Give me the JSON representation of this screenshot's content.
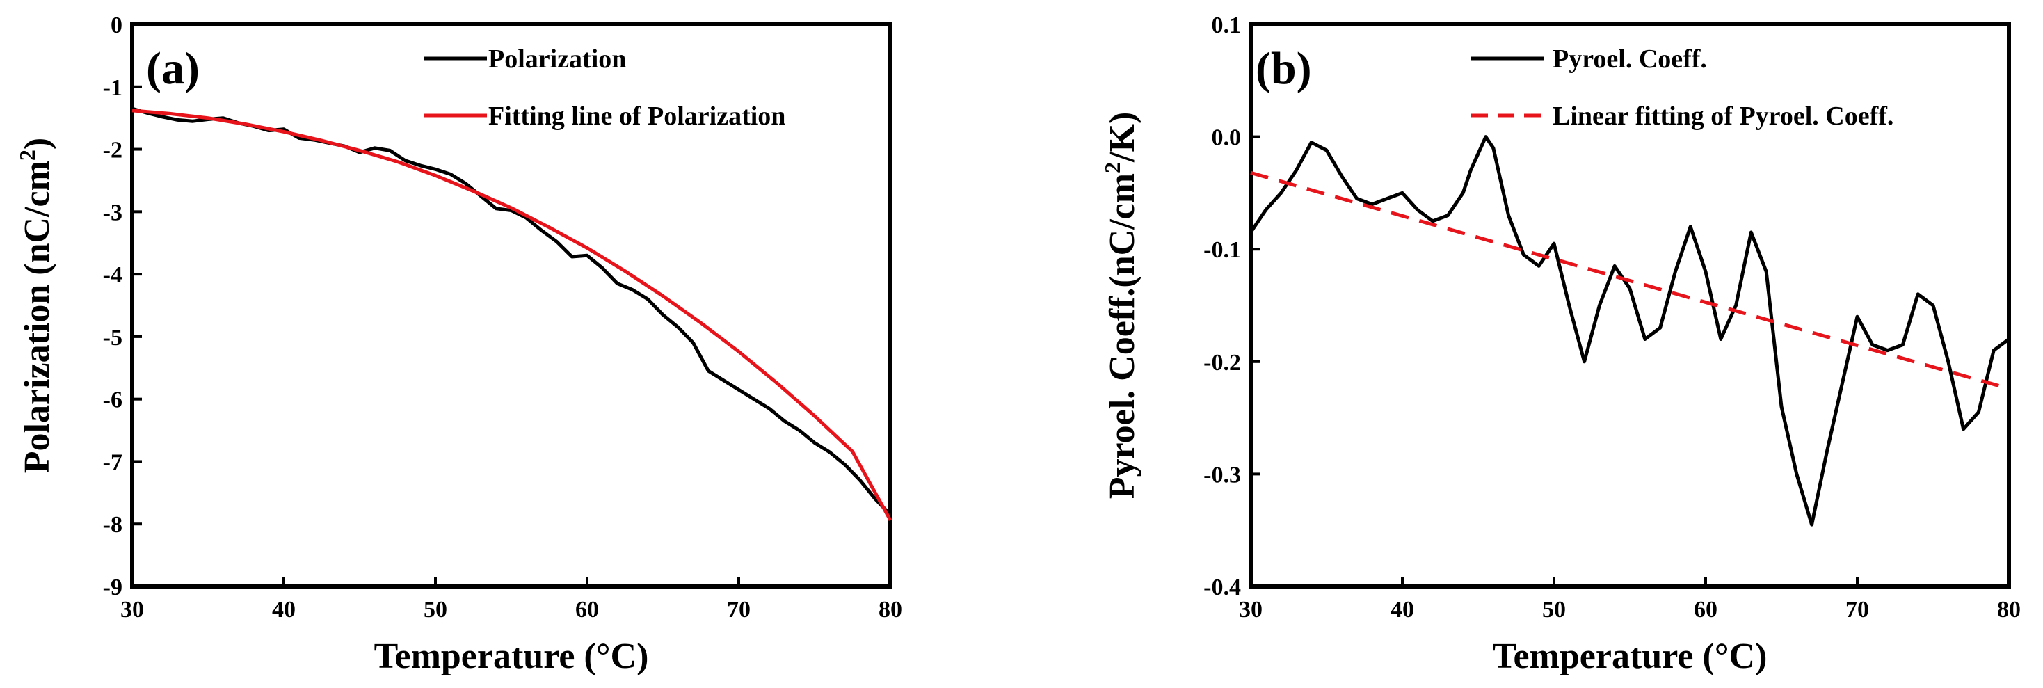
{
  "chart_data": [
    {
      "panel_label": "(a)",
      "type": "line",
      "xlabel": "Temperature (°C)",
      "ylabel_prefix": "Polarization (nC/cm",
      "ylabel_sup": "2",
      "ylabel_suffix": ")",
      "xlim": [
        30,
        80
      ],
      "ylim": [
        -9,
        0
      ],
      "xticks": [
        "30",
        "40",
        "50",
        "60",
        "70",
        "80"
      ],
      "yticks": [
        "0",
        "-1",
        "-2",
        "-3",
        "-4",
        "-5",
        "-6",
        "-7",
        "-8",
        "-9"
      ],
      "legend_position": "top-right",
      "series": [
        {
          "name": "Polarization",
          "color": "#000000",
          "style": "solid",
          "x": [
            30,
            31,
            32,
            33,
            34,
            35,
            36,
            37,
            38,
            39,
            40,
            41,
            42,
            43,
            44,
            45,
            46,
            47,
            48,
            49,
            50,
            51,
            52,
            53,
            54,
            55,
            56,
            57,
            58,
            59,
            60,
            61,
            62,
            63,
            64,
            65,
            66,
            67,
            68,
            69,
            70,
            71,
            72,
            73,
            74,
            75,
            76,
            77,
            78,
            79,
            80
          ],
          "y": [
            -1.35,
            -1.42,
            -1.48,
            -1.53,
            -1.55,
            -1.52,
            -1.5,
            -1.58,
            -1.63,
            -1.7,
            -1.68,
            -1.82,
            -1.85,
            -1.9,
            -1.95,
            -2.05,
            -1.98,
            -2.02,
            -2.18,
            -2.26,
            -2.32,
            -2.4,
            -2.55,
            -2.75,
            -2.95,
            -2.98,
            -3.1,
            -3.3,
            -3.48,
            -3.72,
            -3.7,
            -3.9,
            -4.15,
            -4.25,
            -4.4,
            -4.65,
            -4.85,
            -5.1,
            -5.55,
            -5.7,
            -5.85,
            -6.0,
            -6.15,
            -6.35,
            -6.5,
            -6.7,
            -6.85,
            -7.05,
            -7.3,
            -7.6,
            -7.85
          ]
        },
        {
          "name": "Fitting line of Polarization",
          "color": "#e8141c",
          "style": "solid",
          "x": [
            30,
            32.5,
            35,
            37.5,
            40,
            42.5,
            45,
            47.5,
            50,
            52.5,
            55,
            57.5,
            60,
            62.5,
            65,
            67.5,
            70,
            72.5,
            75,
            77.5,
            80
          ],
          "y": [
            -1.38,
            -1.43,
            -1.5,
            -1.6,
            -1.72,
            -1.86,
            -2.02,
            -2.2,
            -2.42,
            -2.67,
            -2.94,
            -3.25,
            -3.58,
            -3.95,
            -4.35,
            -4.78,
            -5.24,
            -5.74,
            -6.27,
            -6.84,
            -7.94
          ]
        }
      ]
    },
    {
      "panel_label": "(b)",
      "type": "line",
      "xlabel": "Temperature (°C)",
      "ylabel_prefix": "Pyroel. Coeff.(nC/cm",
      "ylabel_sup": "2",
      "ylabel_suffix": "/K)",
      "xlim": [
        30,
        80
      ],
      "ylim": [
        -0.4,
        0.1
      ],
      "xticks": [
        "30",
        "40",
        "50",
        "60",
        "70",
        "80"
      ],
      "yticks": [
        "0.1",
        "0.0",
        "-0.1",
        "-0.2",
        "-0.3",
        "-0.4"
      ],
      "legend_position": "top-right",
      "series": [
        {
          "name": "Pyroel. Coeff.",
          "color": "#000000",
          "style": "solid",
          "x": [
            30,
            31,
            32,
            33,
            34,
            35,
            36,
            37,
            38,
            39,
            40,
            41,
            42,
            43,
            44,
            44.5,
            45,
            45.5,
            46,
            47,
            48,
            49,
            50,
            51,
            52,
            53,
            54,
            55,
            56,
            57,
            58,
            59,
            60,
            61,
            62,
            63,
            64,
            65,
            66,
            67,
            68,
            69,
            70,
            71,
            72,
            73,
            74,
            75,
            76,
            77,
            78,
            79,
            80
          ],
          "y": [
            -0.085,
            -0.065,
            -0.05,
            -0.03,
            -0.005,
            -0.012,
            -0.035,
            -0.055,
            -0.06,
            -0.055,
            -0.05,
            -0.065,
            -0.075,
            -0.07,
            -0.05,
            -0.03,
            -0.015,
            0.0,
            -0.01,
            -0.07,
            -0.105,
            -0.115,
            -0.095,
            -0.15,
            -0.2,
            -0.15,
            -0.115,
            -0.135,
            -0.18,
            -0.17,
            -0.12,
            -0.08,
            -0.12,
            -0.18,
            -0.15,
            -0.085,
            -0.12,
            -0.24,
            -0.3,
            -0.345,
            -0.28,
            -0.22,
            -0.16,
            -0.185,
            -0.19,
            -0.185,
            -0.14,
            -0.15,
            -0.2,
            -0.26,
            -0.245,
            -0.19,
            -0.18
          ]
        },
        {
          "name": "Linear fitting of Pyroel. Coeff.",
          "color": "#e8141c",
          "style": "dashed",
          "x": [
            30,
            80
          ],
          "y": [
            -0.032,
            -0.224
          ]
        }
      ]
    }
  ]
}
